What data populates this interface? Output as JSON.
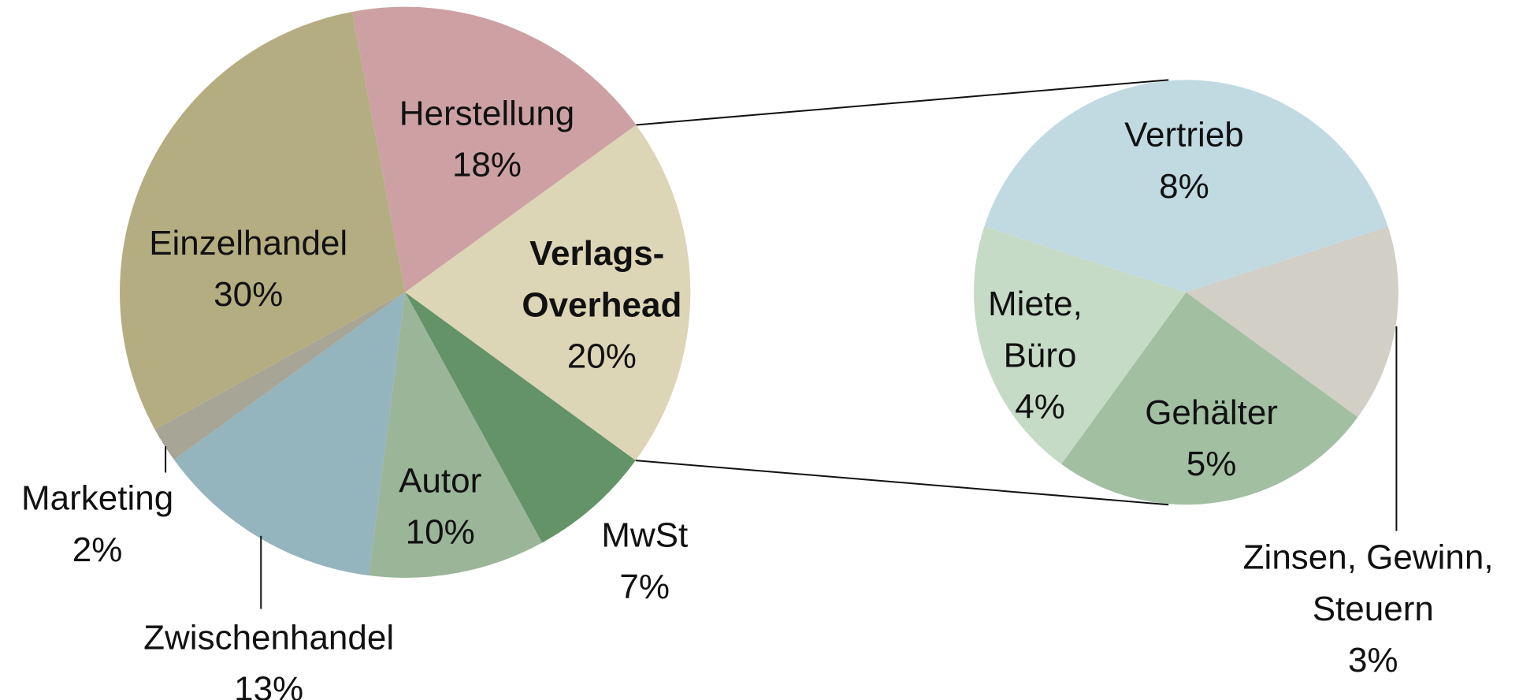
{
  "chart_data": [
    {
      "type": "pie",
      "categories": [
        "Herstellung",
        "Verlags-\nOverhead",
        "MwSt",
        "Autor",
        "Zwischenhandel",
        "Marketing",
        "Einzelhandel"
      ],
      "values": [
        18,
        20,
        7,
        10,
        13,
        2,
        30
      ],
      "value_labels": [
        "18%",
        "20%",
        "7%",
        "10%",
        "13%",
        "2%",
        "30%"
      ],
      "colors": [
        "#cda1a3",
        "#dcd5b6",
        "#639367",
        "#9bb598",
        "#94b4be",
        "#a6a596",
        "#b5ad82"
      ]
    },
    {
      "type": "pie",
      "categories": [
        "Vertrieb",
        "Zinsen, Gewinn,\nSteuern",
        "Gehälter",
        "Miete,\nBüro"
      ],
      "values": [
        8,
        3,
        5,
        4
      ],
      "value_labels": [
        "8%",
        "3%",
        "5%",
        "4%"
      ],
      "colors": [
        "#c1dae2",
        "#d1cfc6",
        "#a2bfa2",
        "#c6dbc6"
      ]
    }
  ]
}
